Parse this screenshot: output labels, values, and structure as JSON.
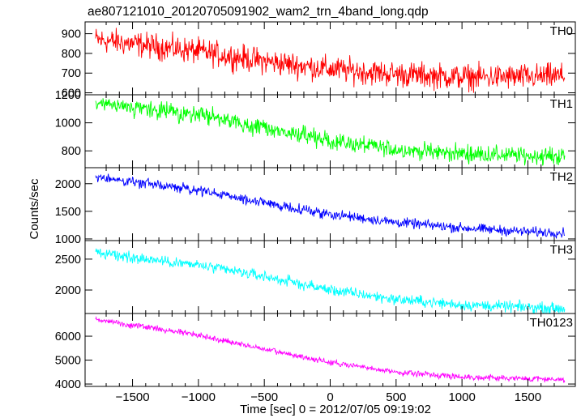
{
  "chart_data": {
    "type": "line",
    "title": "ae807121010_20120705091902_wam2_trn_4band_long.qdp",
    "xlabel": "Time [sec] 0 = 2012/07/05 09:19:02",
    "ylabel": "Counts/sec",
    "xlim": [
      -1860,
      1860
    ],
    "x_ticks": [
      -1500,
      -1000,
      -500,
      0,
      500,
      1000,
      1500
    ],
    "x_tick_labels": [
      "−1500",
      "−1000",
      "−500",
      "0",
      "500",
      "1000",
      "1500"
    ],
    "x_range": [
      -1780,
      1780
    ],
    "grid": false,
    "panels": [
      {
        "name": "TH0",
        "color": "#ff0000",
        "ylim": [
          590,
          960
        ],
        "y_ticks": [
          600,
          700,
          800,
          900
        ],
        "y_tick_labels": [
          "600",
          "700",
          "800",
          "900"
        ],
        "trend": [
          [
            -1780,
            870
          ],
          [
            -1000,
            810
          ],
          [
            -500,
            760
          ],
          [
            0,
            720
          ],
          [
            500,
            695
          ],
          [
            1000,
            680
          ],
          [
            1500,
            680
          ],
          [
            1780,
            685
          ]
        ],
        "noise": 40
      },
      {
        "name": "TH1",
        "color": "#00ff00",
        "ylim": [
          680,
          1200
        ],
        "y_ticks": [
          800,
          1000,
          1200
        ],
        "y_tick_labels": [
          "800",
          "1000",
          "1200"
        ],
        "trend": [
          [
            -1780,
            1130
          ],
          [
            -1000,
            1060
          ],
          [
            -500,
            960
          ],
          [
            0,
            870
          ],
          [
            500,
            810
          ],
          [
            1000,
            780
          ],
          [
            1500,
            765
          ],
          [
            1780,
            760
          ]
        ],
        "noise": 38
      },
      {
        "name": "TH2",
        "color": "#0000ff",
        "ylim": [
          970,
          2290
        ],
        "y_ticks": [
          1000,
          1500,
          2000
        ],
        "y_tick_labels": [
          "1000",
          "1500",
          "2000"
        ],
        "trend": [
          [
            -1780,
            2120
          ],
          [
            -1000,
            1880
          ],
          [
            -500,
            1650
          ],
          [
            0,
            1450
          ],
          [
            500,
            1300
          ],
          [
            1000,
            1200
          ],
          [
            1500,
            1130
          ],
          [
            1780,
            1110
          ]
        ],
        "noise": 55
      },
      {
        "name": "TH3",
        "color": "#00ffff",
        "ylim": [
          1620,
          2800
        ],
        "y_ticks": [
          2000,
          2500
        ],
        "y_tick_labels": [
          "2000",
          "2500"
        ],
        "trend": [
          [
            -1780,
            2600
          ],
          [
            -1000,
            2400
          ],
          [
            -500,
            2220
          ],
          [
            0,
            2000
          ],
          [
            500,
            1850
          ],
          [
            1000,
            1760
          ],
          [
            1500,
            1720
          ],
          [
            1780,
            1700
          ]
        ],
        "noise": 55
      },
      {
        "name": "TH0123",
        "color": "#ff00ff",
        "ylim": [
          3900,
          6950
        ],
        "y_ticks": [
          4000,
          5000,
          6000
        ],
        "y_tick_labels": [
          "4000",
          "5000",
          "6000"
        ],
        "trend": [
          [
            -1780,
            6700
          ],
          [
            -1000,
            6050
          ],
          [
            -500,
            5450
          ],
          [
            0,
            4900
          ],
          [
            500,
            4500
          ],
          [
            1000,
            4300
          ],
          [
            1500,
            4220
          ],
          [
            1780,
            4200
          ]
        ],
        "noise": 75
      }
    ]
  }
}
